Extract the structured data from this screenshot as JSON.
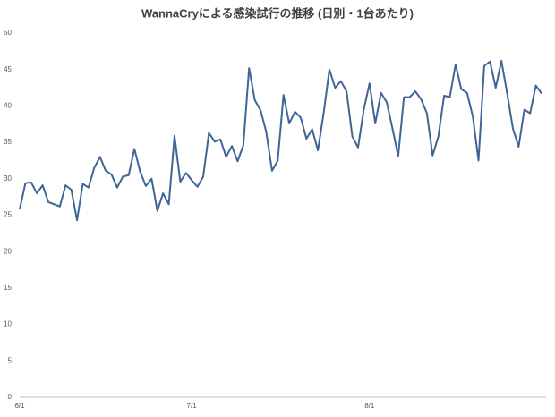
{
  "chart_data": {
    "type": "line",
    "title": "WannaCryによる感染試行の推移 (日別・1台あたり)",
    "categories": [
      "6/1",
      null,
      null,
      null,
      null,
      null,
      null,
      null,
      null,
      null,
      null,
      null,
      null,
      null,
      null,
      null,
      null,
      null,
      null,
      null,
      null,
      null,
      null,
      null,
      null,
      null,
      null,
      null,
      null,
      null,
      "7/1",
      null,
      null,
      null,
      null,
      null,
      null,
      null,
      null,
      null,
      null,
      null,
      null,
      null,
      null,
      null,
      null,
      null,
      null,
      null,
      null,
      null,
      null,
      null,
      null,
      null,
      null,
      null,
      null,
      null,
      null,
      "8/1",
      null,
      null,
      null,
      null,
      null,
      null,
      null,
      null,
      null,
      null,
      null,
      null,
      null,
      null,
      null,
      null,
      null,
      null,
      null,
      null,
      null,
      null,
      null,
      null,
      null,
      null,
      null,
      null,
      null,
      null
    ],
    "series": [
      {
        "color": "#3f6596",
        "values": [
          25.8,
          29.4,
          29.5,
          28.0,
          29.1,
          26.8,
          26.5,
          26.2,
          29.1,
          28.5,
          24.3,
          29.3,
          28.8,
          31.5,
          33.0,
          31.1,
          30.6,
          28.8,
          30.3,
          30.5,
          34.1,
          31.0,
          29.0,
          30.0,
          25.6,
          28.0,
          26.5,
          35.9,
          29.6,
          30.8,
          29.8,
          28.9,
          30.3,
          36.3,
          35.1,
          35.4,
          33.0,
          34.5,
          32.4,
          34.6,
          45.2,
          40.8,
          39.4,
          36.4,
          31.1,
          32.5,
          41.5,
          37.6,
          39.2,
          38.4,
          35.5,
          36.8,
          33.9,
          39.0,
          45.0,
          42.5,
          43.4,
          42.0,
          35.8,
          34.3,
          39.5,
          43.1,
          37.6,
          41.8,
          40.5,
          36.9,
          33.1,
          41.2,
          41.2,
          42.0,
          40.9,
          39.0,
          33.2,
          35.8,
          41.4,
          41.2,
          45.7,
          42.3,
          41.8,
          38.6,
          32.5,
          45.5,
          46.1,
          42.5,
          46.2,
          41.7,
          36.9,
          34.4,
          39.5,
          39.0,
          42.8,
          41.7
        ]
      }
    ],
    "ylim": [
      0,
      50
    ],
    "yticks": [
      0,
      5,
      10,
      15,
      20,
      25,
      30,
      35,
      40,
      45,
      50
    ],
    "grid": false
  }
}
